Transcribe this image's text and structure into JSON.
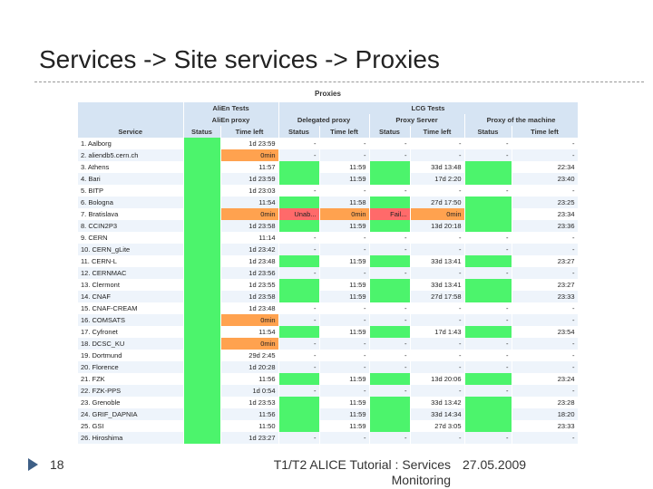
{
  "title": "Services -> Site services -> Proxies",
  "panel_title": "Proxies",
  "header": {
    "groups": [
      "AliEn Tests",
      "LCG Tests"
    ],
    "subgroups": [
      "AliEn proxy",
      "Delegated proxy",
      "Proxy Server",
      "Proxy of the machine"
    ],
    "columns": [
      "Service",
      "Status",
      "Time left",
      "Status",
      "Time left",
      "Status",
      "Time left",
      "Status",
      "Time left"
    ]
  },
  "states": {
    "ok": "#4cf46c",
    "warn": "#ffa24f",
    "error": "#ff6a6a"
  },
  "rows": [
    [
      "1. Aalborg",
      {
        "state": "ok"
      },
      "1d 23:59",
      "-",
      "-",
      "-",
      "-",
      "-",
      "-"
    ],
    [
      "2. aliendb5.cern.ch",
      {
        "state": "ok"
      },
      {
        "text": "0min",
        "state": "warn"
      },
      "-",
      "-",
      "-",
      "-",
      "-",
      "-"
    ],
    [
      "3. Athens",
      {
        "state": "ok"
      },
      "11:57",
      {
        "state": "ok"
      },
      "11:59",
      {
        "state": "ok"
      },
      "33d 13:48",
      {
        "state": "ok"
      },
      "22:34"
    ],
    [
      "4. Bari",
      {
        "state": "ok"
      },
      "1d 23:59",
      {
        "state": "ok"
      },
      "11:59",
      {
        "state": "ok"
      },
      "17d 2:20",
      {
        "state": "ok"
      },
      "23:40"
    ],
    [
      "5. BITP",
      {
        "state": "ok"
      },
      "1d 23:03",
      "-",
      "-",
      "-",
      "-",
      "-",
      "-"
    ],
    [
      "6. Bologna",
      {
        "state": "ok"
      },
      "11:54",
      {
        "state": "ok"
      },
      "11:58",
      {
        "state": "ok"
      },
      "27d 17:50",
      {
        "state": "ok"
      },
      "23:25"
    ],
    [
      "7. Bratislava",
      {
        "state": "ok"
      },
      {
        "text": "0min",
        "state": "warn"
      },
      {
        "text": "Unab...",
        "state": "error"
      },
      {
        "text": "0min",
        "state": "warn"
      },
      {
        "text": "Fail...",
        "state": "error"
      },
      {
        "text": "0min",
        "state": "warn"
      },
      {
        "state": "ok"
      },
      "23:34"
    ],
    [
      "8. CCIN2P3",
      {
        "state": "ok"
      },
      "1d 23:58",
      {
        "state": "ok"
      },
      "11:59",
      {
        "state": "ok"
      },
      "13d 20:18",
      {
        "state": "ok"
      },
      "23:36"
    ],
    [
      "9. CERN",
      {
        "state": "ok"
      },
      "11:14",
      "-",
      "-",
      "-",
      "-",
      "-",
      "-"
    ],
    [
      "10. CERN_gLite",
      {
        "state": "ok"
      },
      "1d 23:42",
      "-",
      "-",
      "-",
      "-",
      "-",
      "-"
    ],
    [
      "11. CERN-L",
      {
        "state": "ok"
      },
      "1d 23:48",
      {
        "state": "ok"
      },
      "11:59",
      {
        "state": "ok"
      },
      "33d 13:41",
      {
        "state": "ok"
      },
      "23:27"
    ],
    [
      "12. CERNMAC",
      {
        "state": "ok"
      },
      "1d 23:56",
      "-",
      "-",
      "-",
      "-",
      "-",
      "-"
    ],
    [
      "13. Clermont",
      {
        "state": "ok"
      },
      "1d 23:55",
      {
        "state": "ok"
      },
      "11:59",
      {
        "state": "ok"
      },
      "33d 13:41",
      {
        "state": "ok"
      },
      "23:27"
    ],
    [
      "14. CNAF",
      {
        "state": "ok"
      },
      "1d 23:58",
      {
        "state": "ok"
      },
      "11:59",
      {
        "state": "ok"
      },
      "27d 17:58",
      {
        "state": "ok"
      },
      "23:33"
    ],
    [
      "15. CNAF-CREAM",
      {
        "state": "ok"
      },
      "1d 23:48",
      "-",
      "-",
      "-",
      "-",
      "-",
      "-"
    ],
    [
      "16. COMSATS",
      {
        "state": "ok"
      },
      {
        "text": "0min",
        "state": "warn"
      },
      "-",
      "-",
      "-",
      "-",
      "-",
      "-"
    ],
    [
      "17. Cyfronet",
      {
        "state": "ok"
      },
      "11:54",
      {
        "state": "ok"
      },
      "11:59",
      {
        "state": "ok"
      },
      "17d 1:43",
      {
        "state": "ok"
      },
      "23:54"
    ],
    [
      "18. DCSC_KU",
      {
        "state": "ok"
      },
      {
        "text": "0min",
        "state": "warn"
      },
      "-",
      "-",
      "-",
      "-",
      "-",
      "-"
    ],
    [
      "19. Dortmund",
      {
        "state": "ok"
      },
      "29d 2:45",
      "-",
      "-",
      "-",
      "-",
      "-",
      "-"
    ],
    [
      "20. Florence",
      {
        "state": "ok"
      },
      "1d 20:28",
      "-",
      "-",
      "-",
      "-",
      "-",
      "-"
    ],
    [
      "21. FZK",
      {
        "state": "ok"
      },
      "11:56",
      {
        "state": "ok"
      },
      "11:59",
      {
        "state": "ok"
      },
      "13d 20:06",
      {
        "state": "ok"
      },
      "23:24"
    ],
    [
      "22. FZK-PPS",
      {
        "state": "ok"
      },
      "1d 0:54",
      "-",
      "-",
      "-",
      "-",
      "-",
      "-"
    ],
    [
      "23. Grenoble",
      {
        "state": "ok"
      },
      "1d 23:53",
      {
        "state": "ok"
      },
      "11:59",
      {
        "state": "ok"
      },
      "33d 13:42",
      {
        "state": "ok"
      },
      "23:28"
    ],
    [
      "24. GRIF_DAPNIA",
      {
        "state": "ok"
      },
      "11:56",
      {
        "state": "ok"
      },
      "11:59",
      {
        "state": "ok"
      },
      "33d 14:34",
      {
        "state": "ok"
      },
      "18:20"
    ],
    [
      "25. GSI",
      {
        "state": "ok"
      },
      "11:50",
      {
        "state": "ok"
      },
      "11:59",
      {
        "state": "ok"
      },
      "27d 3:05",
      {
        "state": "ok"
      },
      "23:33"
    ],
    [
      "26. Hiroshima",
      {
        "state": "ok"
      },
      "1d 23:27",
      "-",
      "-",
      "-",
      "-",
      "-",
      "-"
    ]
  ],
  "footer": {
    "page": "18",
    "course": "T1/T2 ALICE Tutorial : Services",
    "course_line2": "Monitoring",
    "date": "27.05.2009"
  }
}
